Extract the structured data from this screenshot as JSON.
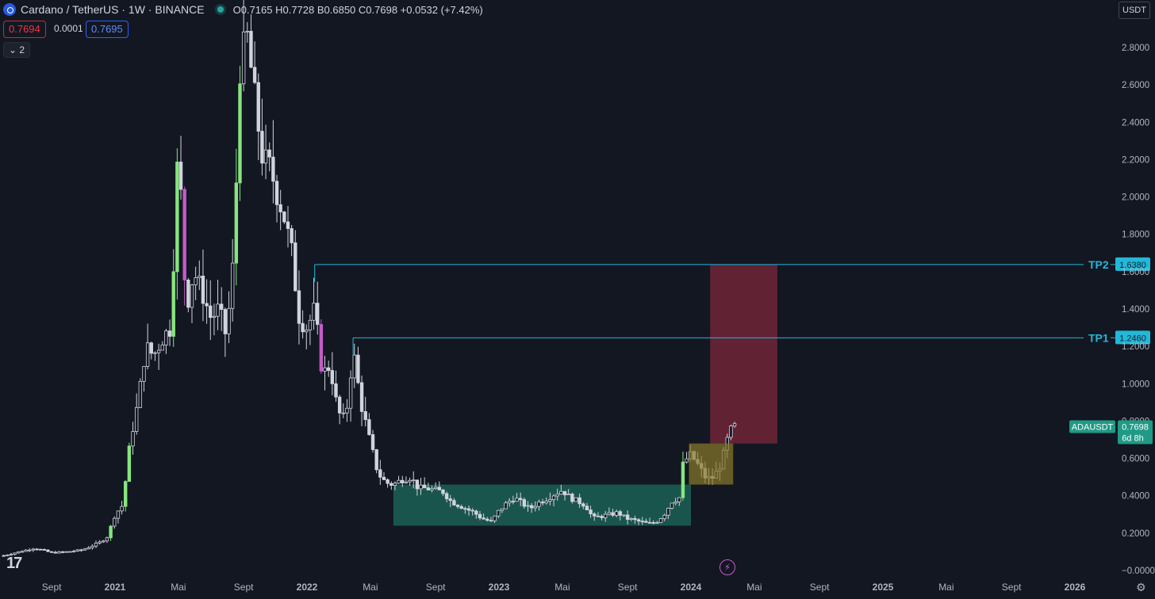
{
  "header": {
    "title": "Cardano / TetherUS · 1W · BINANCE",
    "ohlc": "O0.7165 H0.7728 B0.6850 C0.7698 +0.0532 (+7.42%)",
    "bid": "0.7694",
    "spread": "0.0001",
    "ask": "0.7695",
    "indicator_toggle": "⌄ 2",
    "currency": "USDT"
  },
  "chart_data": {
    "type": "candlestick",
    "symbol": "ADAUSDT",
    "interval": "1W",
    "y_range": [
      0.0,
      2.8
    ],
    "y_ticks": [
      {
        "v": 2.8,
        "label": "2.8000"
      },
      {
        "v": 2.6,
        "label": "2.6000"
      },
      {
        "v": 2.4,
        "label": "2.4000"
      },
      {
        "v": 2.2,
        "label": "2.2000"
      },
      {
        "v": 2.0,
        "label": "2.0000"
      },
      {
        "v": 1.8,
        "label": "1.8000"
      },
      {
        "v": 1.6,
        "label": "1.6000"
      },
      {
        "v": 1.4,
        "label": "1.4000"
      },
      {
        "v": 1.2,
        "label": "1.2000"
      },
      {
        "v": 1.0,
        "label": "1.0000"
      },
      {
        "v": 0.8,
        "label": "0.8000"
      },
      {
        "v": 0.6,
        "label": "0.6000"
      },
      {
        "v": 0.4,
        "label": "0.4000"
      },
      {
        "v": 0.2,
        "label": "0.2000"
      },
      {
        "v": 0.0,
        "label": "−0.0000"
      }
    ],
    "x_ticks": [
      {
        "t": 2020.67,
        "label": "Sept"
      },
      {
        "t": 2021.0,
        "label": "2021",
        "bold": true
      },
      {
        "t": 2021.33,
        "label": "Mai"
      },
      {
        "t": 2021.67,
        "label": "Sept"
      },
      {
        "t": 2022.0,
        "label": "2022",
        "bold": true
      },
      {
        "t": 2022.33,
        "label": "Mai"
      },
      {
        "t": 2022.67,
        "label": "Sept"
      },
      {
        "t": 2023.0,
        "label": "2023",
        "bold": true
      },
      {
        "t": 2023.33,
        "label": "Mai"
      },
      {
        "t": 2023.67,
        "label": "Sept"
      },
      {
        "t": 2024.0,
        "label": "2024",
        "bold": true
      },
      {
        "t": 2024.33,
        "label": "Mai"
      },
      {
        "t": 2024.67,
        "label": "Sept"
      },
      {
        "t": 2025.0,
        "label": "2025",
        "bold": true
      },
      {
        "t": 2025.33,
        "label": "Mai"
      },
      {
        "t": 2025.67,
        "label": "Sept"
      },
      {
        "t": 2026.0,
        "label": "2026",
        "bold": true
      }
    ],
    "close_path": [
      [
        2020.42,
        0.08
      ],
      [
        2020.5,
        0.1
      ],
      [
        2020.58,
        0.12
      ],
      [
        2020.67,
        0.095
      ],
      [
        2020.75,
        0.1
      ],
      [
        2020.83,
        0.11
      ],
      [
        2020.92,
        0.15
      ],
      [
        2020.96,
        0.18
      ],
      [
        2021.0,
        0.3
      ],
      [
        2021.04,
        0.35
      ],
      [
        2021.08,
        0.7
      ],
      [
        2021.12,
        0.9
      ],
      [
        2021.16,
        1.2
      ],
      [
        2021.2,
        1.15
      ],
      [
        2021.25,
        1.25
      ],
      [
        2021.29,
        1.3
      ],
      [
        2021.33,
        2.3
      ],
      [
        2021.37,
        1.4
      ],
      [
        2021.41,
        1.6
      ],
      [
        2021.45,
        1.5
      ],
      [
        2021.5,
        1.35
      ],
      [
        2021.54,
        1.4
      ],
      [
        2021.58,
        1.25
      ],
      [
        2021.62,
        1.7
      ],
      [
        2021.65,
        2.7
      ],
      [
        2021.69,
        2.85
      ],
      [
        2021.73,
        2.5
      ],
      [
        2021.77,
        2.2
      ],
      [
        2021.81,
        2.15
      ],
      [
        2021.85,
        2.0
      ],
      [
        2021.88,
        1.9
      ],
      [
        2021.92,
        1.7
      ],
      [
        2021.96,
        1.35
      ],
      [
        2022.0,
        1.3
      ],
      [
        2022.04,
        1.4
      ],
      [
        2022.08,
        1.05
      ],
      [
        2022.12,
        1.1
      ],
      [
        2022.16,
        0.85
      ],
      [
        2022.2,
        0.8
      ],
      [
        2022.24,
        1.18
      ],
      [
        2022.28,
        0.9
      ],
      [
        2022.33,
        0.68
      ],
      [
        2022.37,
        0.52
      ],
      [
        2022.41,
        0.47
      ],
      [
        2022.45,
        0.46
      ],
      [
        2022.5,
        0.49
      ],
      [
        2022.54,
        0.5
      ],
      [
        2022.58,
        0.44
      ],
      [
        2022.62,
        0.44
      ],
      [
        2022.67,
        0.43
      ],
      [
        2022.71,
        0.42
      ],
      [
        2022.75,
        0.37
      ],
      [
        2022.79,
        0.35
      ],
      [
        2022.83,
        0.33
      ],
      [
        2022.87,
        0.31
      ],
      [
        2022.91,
        0.28
      ],
      [
        2022.96,
        0.26
      ],
      [
        2023.0,
        0.32
      ],
      [
        2023.04,
        0.36
      ],
      [
        2023.08,
        0.39
      ],
      [
        2023.12,
        0.36
      ],
      [
        2023.16,
        0.33
      ],
      [
        2023.2,
        0.36
      ],
      [
        2023.24,
        0.38
      ],
      [
        2023.29,
        0.41
      ],
      [
        2023.33,
        0.43
      ],
      [
        2023.37,
        0.39
      ],
      [
        2023.41,
        0.37
      ],
      [
        2023.45,
        0.35
      ],
      [
        2023.49,
        0.28
      ],
      [
        2023.53,
        0.29
      ],
      [
        2023.58,
        0.3
      ],
      [
        2023.62,
        0.31
      ],
      [
        2023.66,
        0.28
      ],
      [
        2023.7,
        0.27
      ],
      [
        2023.74,
        0.26
      ],
      [
        2023.78,
        0.25
      ],
      [
        2023.82,
        0.26
      ],
      [
        2023.86,
        0.3
      ],
      [
        2023.9,
        0.37
      ],
      [
        2023.94,
        0.39
      ],
      [
        2023.96,
        0.58
      ],
      [
        2024.0,
        0.62
      ],
      [
        2024.04,
        0.56
      ],
      [
        2024.08,
        0.49
      ],
      [
        2024.12,
        0.5
      ],
      [
        2024.16,
        0.58
      ],
      [
        2024.2,
        0.74
      ],
      [
        2024.23,
        0.77
      ]
    ],
    "accumulation_zone": {
      "t0": 2022.45,
      "t1": 2024.0,
      "low": 0.24,
      "high": 0.46,
      "color": "#1d6b5c"
    },
    "breakout_zone": {
      "t0": 2023.99,
      "t1": 2024.22,
      "low": 0.46,
      "high": 0.68,
      "color": "#8a7a2a"
    },
    "target_zone": {
      "t0": 2024.1,
      "t1": 2024.45,
      "low": 0.68,
      "high": 1.638,
      "color": "#c2334b"
    },
    "levels": [
      {
        "name": "TP2",
        "value": 1.638,
        "label": "1.6380",
        "t_start": 2022.04,
        "color": "#22b8d8"
      },
      {
        "name": "TP1",
        "value": 1.246,
        "label": "1.2460",
        "t_start": 2022.24,
        "color": "#22b8d8"
      }
    ],
    "last_price": {
      "symbol": "ADAUSDT",
      "value": 0.7698,
      "label": "0.7698",
      "countdown": "6d 8h",
      "color": "#1f9a86"
    }
  }
}
